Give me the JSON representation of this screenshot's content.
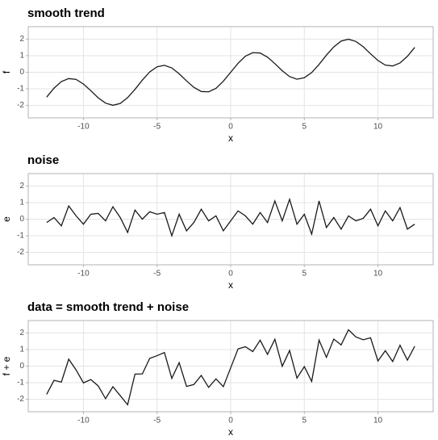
{
  "chart_data": [
    {
      "type": "line",
      "title": "smooth trend",
      "xlabel": "x",
      "ylabel": "f",
      "grid": true,
      "color": "#1a1a1a",
      "x": [
        -12.5,
        -12,
        -11.5,
        -11,
        -10.5,
        -10,
        -9.5,
        -9,
        -8.5,
        -8,
        -7.5,
        -7,
        -6.5,
        -6,
        -5.5,
        -5,
        -4.5,
        -4,
        -3.5,
        -3,
        -2.5,
        -2,
        -1.5,
        -1,
        -0.5,
        0,
        0.5,
        1,
        1.5,
        2,
        2.5,
        3,
        3.5,
        4,
        4.5,
        5,
        5.5,
        6,
        6.5,
        7,
        7.5,
        8,
        8.5,
        9,
        9.5,
        10,
        10.5,
        11,
        11.5,
        12,
        12.5
      ],
      "values": [
        -1.5,
        -0.96,
        -0.56,
        -0.38,
        -0.43,
        -0.71,
        -1.11,
        -1.54,
        -1.86,
        -1.99,
        -1.88,
        -1.53,
        -1.03,
        -0.47,
        0.02,
        0.33,
        0.42,
        0.26,
        -0.09,
        -0.52,
        -0.91,
        -1.16,
        -1.18,
        -0.97,
        -0.54,
        0,
        0.54,
        0.97,
        1.18,
        1.16,
        0.91,
        0.52,
        0.09,
        -0.26,
        -0.42,
        -0.33,
        -0.02,
        0.47,
        1.03,
        1.53,
        1.88,
        1.99,
        1.86,
        1.54,
        1.11,
        0.71,
        0.43,
        0.38,
        0.56,
        0.96,
        1.5
      ],
      "xlim": [
        -13.75,
        13.75
      ],
      "xticks": [
        -10,
        -5,
        0,
        5,
        10
      ],
      "ylim": [
        -2.75,
        2.75
      ],
      "yticks": [
        -2,
        -1,
        0,
        1,
        2
      ]
    },
    {
      "type": "line",
      "title": "noise",
      "xlabel": "x",
      "ylabel": "e",
      "grid": true,
      "color": "#1a1a1a",
      "x": [
        -12.5,
        -12,
        -11.5,
        -11,
        -10.5,
        -10,
        -9.5,
        -9,
        -8.5,
        -8,
        -7.5,
        -7,
        -6.5,
        -6,
        -5.5,
        -5,
        -4.5,
        -4,
        -3.5,
        -3,
        -2.5,
        -2,
        -1.5,
        -1,
        -0.5,
        0,
        0.5,
        1,
        1.5,
        2,
        2.5,
        3,
        3.5,
        4,
        4.5,
        5,
        5.5,
        6,
        6.5,
        7,
        7.5,
        8,
        8.5,
        9,
        9.5,
        10,
        10.5,
        11,
        11.5,
        12,
        12.5
      ],
      "values": [
        -0.2,
        0.1,
        -0.4,
        0.8,
        0.2,
        -0.3,
        0.3,
        0.35,
        -0.1,
        0.75,
        0.1,
        -0.8,
        0.55,
        0,
        0.45,
        0.3,
        0.4,
        -1.0,
        0.3,
        -0.7,
        -0.2,
        0.6,
        -0.1,
        0.2,
        -0.7,
        -0.1,
        0.5,
        0.2,
        -0.3,
        0.4,
        -0.2,
        1.1,
        -0.1,
        1.2,
        -0.3,
        0.3,
        -0.9,
        1.1,
        -0.5,
        0.1,
        -0.6,
        0.2,
        -0.1,
        0.05,
        0.6,
        -0.4,
        0.5,
        -0.1,
        0.7,
        -0.6,
        -0.3
      ],
      "xlim": [
        -13.75,
        13.75
      ],
      "xticks": [
        -10,
        -5,
        0,
        5,
        10
      ],
      "ylim": [
        -2.75,
        2.75
      ],
      "yticks": [
        -2,
        -1,
        0,
        1,
        2
      ]
    },
    {
      "type": "line",
      "title": "data = smooth trend + noise",
      "xlabel": "x",
      "ylabel": "f + e",
      "grid": true,
      "color": "#1a1a1a",
      "x": [
        -12.5,
        -12,
        -11.5,
        -11,
        -10.5,
        -10,
        -9.5,
        -9,
        -8.5,
        -8,
        -7.5,
        -7,
        -6.5,
        -6,
        -5.5,
        -5,
        -4.5,
        -4,
        -3.5,
        -3,
        -2.5,
        -2,
        -1.5,
        -1,
        -0.5,
        0,
        0.5,
        1,
        1.5,
        2,
        2.5,
        3,
        3.5,
        4,
        4.5,
        5,
        5.5,
        6,
        6.5,
        7,
        7.5,
        8,
        8.5,
        9,
        9.5,
        10,
        10.5,
        11,
        11.5,
        12,
        12.5
      ],
      "values": [
        -1.7,
        -0.86,
        -0.96,
        0.42,
        -0.23,
        -1.01,
        -0.81,
        -1.19,
        -1.96,
        -1.24,
        -1.78,
        -2.33,
        -0.48,
        -0.47,
        0.47,
        0.63,
        0.82,
        -0.74,
        0.21,
        -1.22,
        -1.11,
        -0.56,
        -1.28,
        -0.77,
        -1.24,
        -0.1,
        1.04,
        1.17,
        0.88,
        1.56,
        0.71,
        1.62,
        -0.01,
        0.94,
        -0.72,
        -0.03,
        -0.92,
        1.57,
        0.53,
        1.63,
        1.28,
        2.19,
        1.76,
        1.59,
        1.71,
        0.31,
        0.93,
        0.28,
        1.26,
        0.36,
        1.2
      ],
      "xlim": [
        -13.75,
        13.75
      ],
      "xticks": [
        -10,
        -5,
        0,
        5,
        10
      ],
      "ylim": [
        -2.75,
        2.75
      ],
      "yticks": [
        -2,
        -1,
        0,
        1,
        2
      ]
    }
  ]
}
